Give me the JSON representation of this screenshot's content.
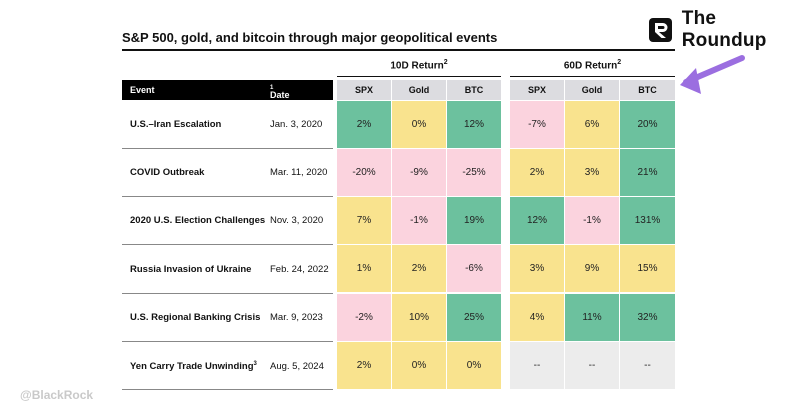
{
  "brand": {
    "name": "The Roundup",
    "logo_icon": "roundup-r-logo-icon"
  },
  "title": "S&P 500, gold, and bitcoin through major geopolitical events",
  "groups": [
    {
      "label": "10D Return",
      "footnote": "2"
    },
    {
      "label": "60D Return",
      "footnote": "2"
    }
  ],
  "headers": {
    "event": "Event",
    "date": "Date",
    "date_footnote": "1",
    "cols": [
      "SPX",
      "Gold",
      "BTC"
    ]
  },
  "rows": [
    {
      "event": "U.S.–Iran Escalation",
      "date": "Jan. 3, 2020",
      "d10": [
        "2%",
        "0%",
        "12%"
      ],
      "d60": [
        "-7%",
        "6%",
        "20%"
      ]
    },
    {
      "event": "COVID Outbreak",
      "date": "Mar. 11, 2020",
      "d10": [
        "-20%",
        "-9%",
        "-25%"
      ],
      "d60": [
        "2%",
        "3%",
        "21%"
      ]
    },
    {
      "event": "2020 U.S. Election Challenges",
      "date": "Nov. 3, 2020",
      "d10": [
        "7%",
        "-1%",
        "19%"
      ],
      "d60": [
        "12%",
        "-1%",
        "131%"
      ]
    },
    {
      "event": "Russia Invasion of Ukraine",
      "date": "Feb. 24, 2022",
      "d10": [
        "1%",
        "2%",
        "-6%"
      ],
      "d60": [
        "3%",
        "9%",
        "15%"
      ]
    },
    {
      "event": "U.S. Regional Banking Crisis",
      "date": "Mar. 9, 2023",
      "d10": [
        "-2%",
        "10%",
        "25%"
      ],
      "d60": [
        "4%",
        "11%",
        "32%"
      ]
    },
    {
      "event": "Yen Carry Trade Unwinding",
      "event_footnote": "3",
      "date": "Aug. 5, 2024",
      "d10": [
        "2%",
        "0%",
        "0%"
      ],
      "d60": [
        "--",
        "--",
        "--"
      ]
    }
  ],
  "colors": {
    "green": "#6cc19e",
    "yellow": "#f9e38e",
    "pink": "#fbd3de",
    "na": "#ececec",
    "arrow": "#9b6ee0"
  },
  "annotation": {
    "arrow_icon": "purple-arrow-icon"
  },
  "credit": "@BlackRock"
}
